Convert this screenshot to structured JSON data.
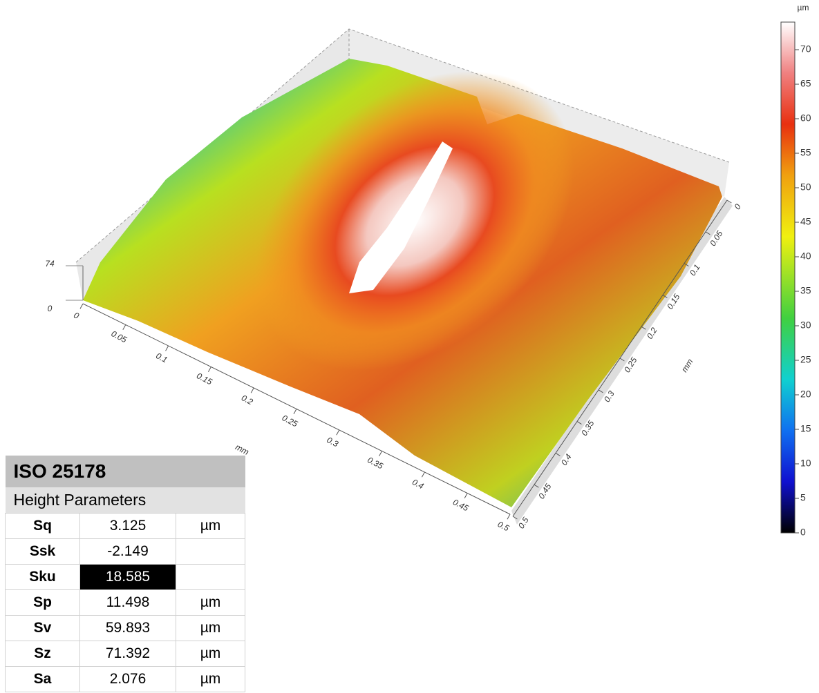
{
  "surface": {
    "xaxis": {
      "unit": "mm",
      "lim": [
        0,
        0.5
      ],
      "ticks": [
        0,
        0.05,
        0.1,
        0.15,
        0.2,
        0.25,
        0.3,
        0.35,
        0.4,
        0.45,
        0.5
      ]
    },
    "yaxis": {
      "unit": "mm",
      "lim": [
        0,
        0.5
      ],
      "ticks": [
        0,
        0.05,
        0.1,
        0.15,
        0.2,
        0.25,
        0.3,
        0.35,
        0.4,
        0.45,
        0.5
      ]
    },
    "zaxis": {
      "lim": [
        0,
        74
      ],
      "ticks": [
        0,
        74
      ]
    }
  },
  "colorbar": {
    "unit": "µm",
    "lim": [
      0,
      74
    ],
    "ticks": [
      0,
      5,
      10,
      15,
      20,
      25,
      30,
      35,
      40,
      45,
      50,
      55,
      60,
      65,
      70
    ]
  },
  "table": {
    "title": "ISO 25178",
    "subtitle": "Height Parameters",
    "rows": [
      [
        "Sq",
        "3.125",
        "µm"
      ],
      [
        "Ssk",
        "-2.149"
      ],
      [
        "Sku",
        "18.585"
      ],
      [
        "Sp",
        "11.498",
        "µm"
      ],
      [
        "Sv",
        "59.893",
        "µm"
      ],
      [
        "Sz",
        "71.392",
        "µm"
      ],
      [
        "Sa",
        "2.076",
        "µm"
      ]
    ]
  }
}
